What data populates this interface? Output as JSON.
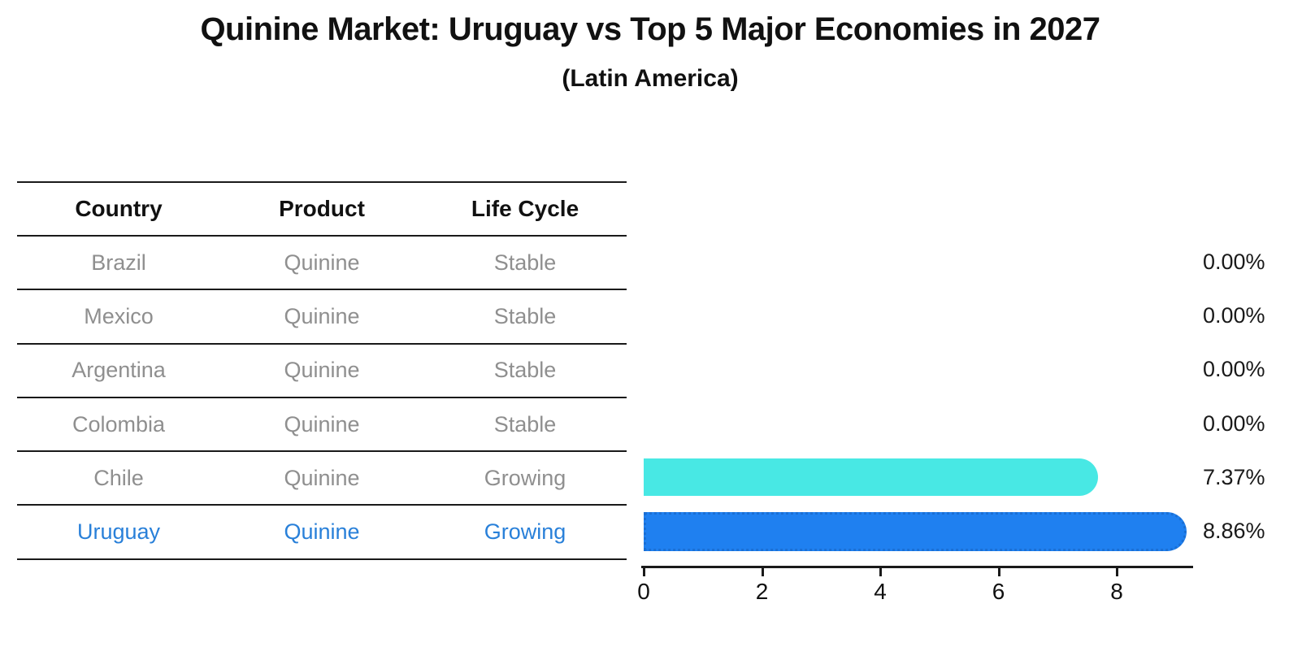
{
  "title": "Quinine Market: Uruguay vs Top 5 Major Economies in 2027",
  "subtitle": "(Latin America)",
  "table": {
    "headers": [
      "Country",
      "Product",
      "Life Cycle"
    ],
    "rows": [
      {
        "country": "Brazil",
        "product": "Quinine",
        "life_cycle": "Stable"
      },
      {
        "country": "Mexico",
        "product": "Quinine",
        "life_cycle": "Stable"
      },
      {
        "country": "Argentina",
        "product": "Quinine",
        "life_cycle": "Stable"
      },
      {
        "country": "Colombia",
        "product": "Quinine",
        "life_cycle": "Stable"
      },
      {
        "country": "Chile",
        "product": "Quinine",
        "life_cycle": "Growing"
      },
      {
        "country": "Uruguay",
        "product": "Quinine",
        "life_cycle": "Growing"
      }
    ],
    "highlighted_country": "Uruguay"
  },
  "chart_data": {
    "type": "bar",
    "orientation": "horizontal",
    "title": "Quinine Market: Uruguay vs Top 5 Major Economies in 2027",
    "subtitle": "(Latin America)",
    "categories": [
      "Brazil",
      "Mexico",
      "Argentina",
      "Colombia",
      "Chile",
      "Uruguay"
    ],
    "values": [
      0,
      0,
      0,
      0,
      7.37,
      8.86
    ],
    "value_labels": [
      "0.00%",
      "0.00%",
      "0.00%",
      "0.00%",
      "7.37%",
      "8.86%"
    ],
    "x_ticks": [
      0,
      2,
      4,
      6,
      8
    ],
    "xlim": [
      0,
      9.3
    ],
    "grid": false,
    "legend": null,
    "bar_colors": [
      "none",
      "none",
      "none",
      "none",
      "#48e8e4",
      "#1f80f0"
    ],
    "highlight_index": 5
  },
  "colors": {
    "chile_bar": "#48e8e4",
    "uruguay_bar": "#1f80f0",
    "uruguay_bar_border": "#1a6fd4",
    "highlight_text": "#2980d9",
    "row_text": "#8f8f8f",
    "line": "#1a1a1a"
  }
}
